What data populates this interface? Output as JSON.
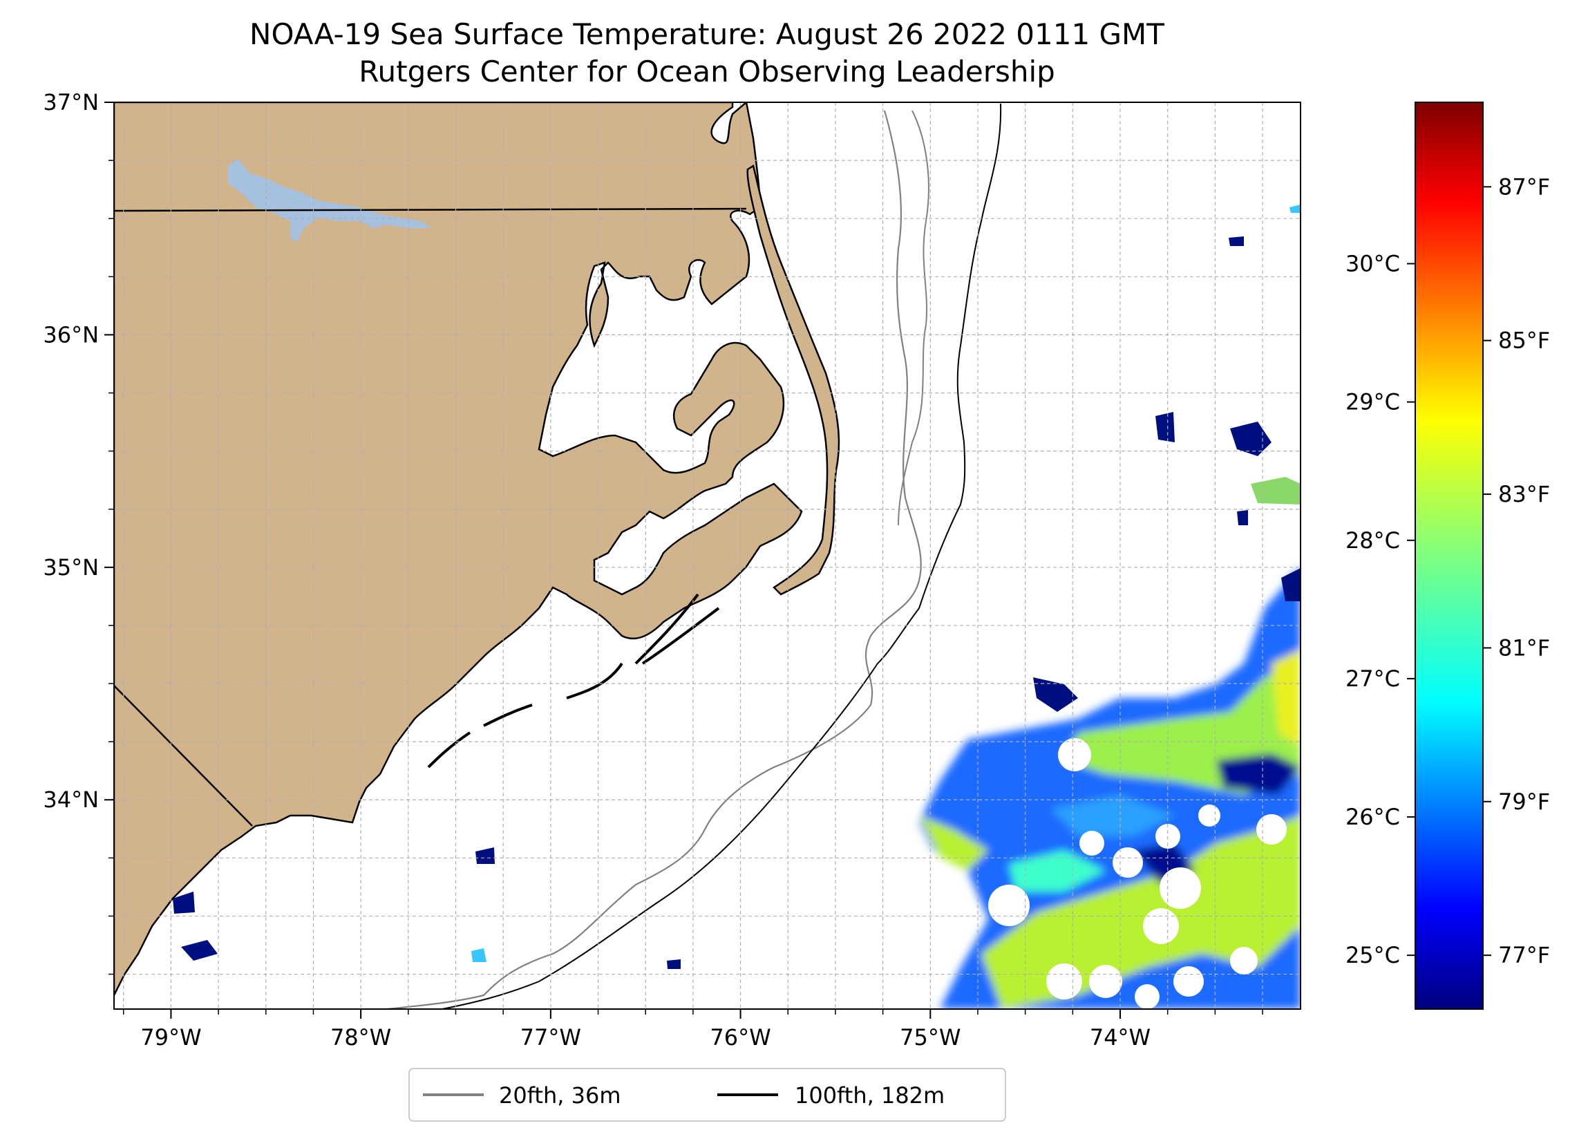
{
  "title": {
    "line1": "NOAA-19 Sea Surface Temperature: August 26 2022 0111 GMT",
    "line2": "Rutgers Center for Ocean Observing Leadership"
  },
  "map": {
    "lon_range": [
      -79.3,
      -73.05
    ],
    "lat_range": [
      33.1,
      37.0
    ],
    "grid": true,
    "lon_ticks": [
      {
        "value": -79,
        "label": "79°W"
      },
      {
        "value": -78,
        "label": "78°W"
      },
      {
        "value": -77,
        "label": "77°W"
      },
      {
        "value": -76,
        "label": "76°W"
      },
      {
        "value": -75,
        "label": "75°W"
      },
      {
        "value": -74,
        "label": "74°W"
      }
    ],
    "lat_ticks": [
      {
        "value": 37,
        "label": "37°N"
      },
      {
        "value": 36,
        "label": "36°N"
      },
      {
        "value": 35,
        "label": "35°N"
      },
      {
        "value": 34,
        "label": "34°N"
      }
    ],
    "colors": {
      "land": "#d2b48c",
      "lake": "#a6c0e0",
      "isobath_20": "#808080",
      "isobath_100": "#000000"
    }
  },
  "legend": {
    "placement": "bottom-center",
    "items": [
      {
        "label": "20fth, 36m",
        "color": "#808080"
      },
      {
        "label": "100fth, 182m",
        "color": "#000000"
      }
    ]
  },
  "colorbar": {
    "colormap": "jet",
    "fahrenheit_range": [
      76.3,
      88.1
    ],
    "celsius_ticks": [
      {
        "value": 25,
        "label": "25°C"
      },
      {
        "value": 26,
        "label": "26°C"
      },
      {
        "value": 27,
        "label": "27°C"
      },
      {
        "value": 28,
        "label": "28°C"
      },
      {
        "value": 29,
        "label": "29°C"
      },
      {
        "value": 30,
        "label": "30°C"
      }
    ],
    "fahrenheit_ticks": [
      {
        "value": 77,
        "label": "77°F"
      },
      {
        "value": 79,
        "label": "79°F"
      },
      {
        "value": 81,
        "label": "81°F"
      },
      {
        "value": 83,
        "label": "83°F"
      },
      {
        "value": 85,
        "label": "85°F"
      },
      {
        "value": 87,
        "label": "87°F"
      }
    ]
  }
}
